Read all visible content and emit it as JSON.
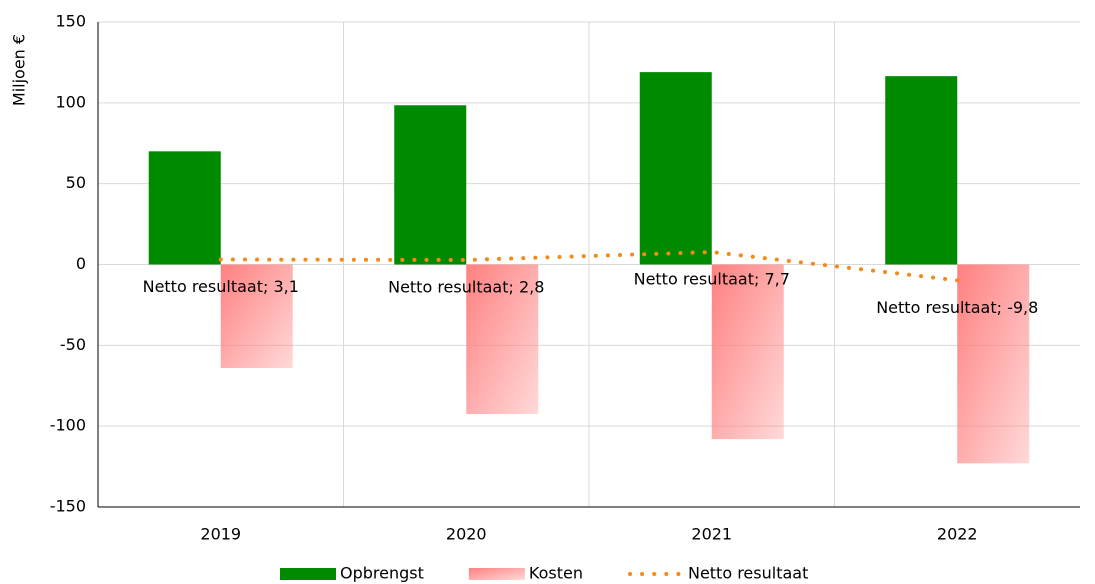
{
  "chart_data": {
    "type": "bar",
    "y_label": "Miljoen €",
    "categories": [
      "2019",
      "2020",
      "2021",
      "2022"
    ],
    "series": [
      {
        "name": "Opbrengst",
        "type": "bar",
        "color": "#008a00",
        "values": [
          70,
          98.5,
          119,
          116.5
        ]
      },
      {
        "name": "Kosten",
        "type": "bar",
        "color": "#ff8080",
        "values": [
          -64,
          -92.5,
          -108,
          -123
        ]
      },
      {
        "name": "Netto resultaat",
        "type": "line",
        "color": "#f28a1c",
        "values": [
          3.1,
          2.8,
          7.7,
          -9.8
        ],
        "value_labels": [
          "Netto resultaat; 3,1",
          "Netto resultaat; 2,8",
          "Netto resultaat; 7,7",
          "Netto resultaat; -9,8"
        ]
      }
    ],
    "ylim": [
      -150,
      150
    ],
    "yticks": [
      -150,
      -100,
      -50,
      0,
      50,
      100,
      150
    ],
    "grid": true,
    "legend": "bottom"
  }
}
